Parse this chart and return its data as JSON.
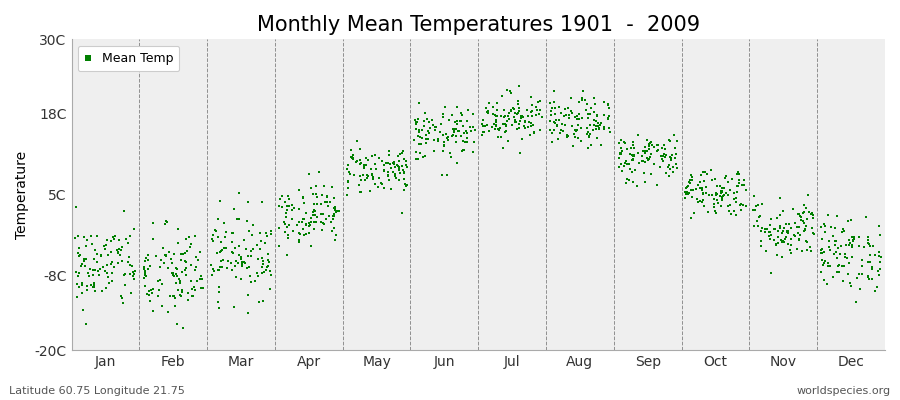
{
  "title": "Monthly Mean Temperatures 1901  -  2009",
  "ylabel": "Temperature",
  "bottom_left_text": "Latitude 60.75 Longitude 21.75",
  "bottom_right_text": "worldspecies.org",
  "legend_label": "Mean Temp",
  "ylim": [
    -20,
    30
  ],
  "yticks": [
    -20,
    -8,
    5,
    18,
    30
  ],
  "ytick_labels": [
    "-20C",
    "-8C",
    "5C",
    "18C",
    "30C"
  ],
  "months": [
    "Jan",
    "Feb",
    "Mar",
    "Apr",
    "May",
    "Jun",
    "Jul",
    "Aug",
    "Sep",
    "Oct",
    "Nov",
    "Dec"
  ],
  "marker_color": "#008000",
  "marker_size": 2.5,
  "background_color": "#efefef",
  "fig_background": "#ffffff",
  "grid_color": "#777777",
  "title_fontsize": 15,
  "axis_fontsize": 10,
  "tick_fontsize": 10,
  "start_year": 1901,
  "end_year": 2009,
  "monthly_means": [
    -6.5,
    -8.0,
    -4.5,
    2.0,
    9.0,
    14.5,
    17.5,
    16.5,
    11.0,
    5.5,
    -0.5,
    -4.5
  ],
  "monthly_stds": [
    3.5,
    4.0,
    3.5,
    2.5,
    2.0,
    2.2,
    2.0,
    2.0,
    2.0,
    2.0,
    2.5,
    3.0
  ],
  "seed": 42
}
